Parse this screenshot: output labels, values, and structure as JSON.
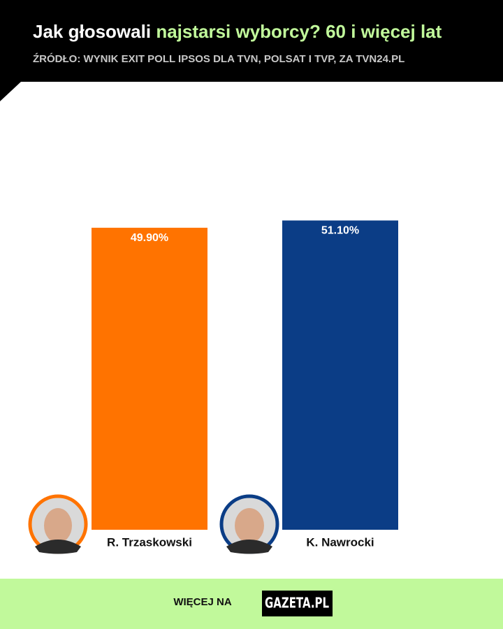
{
  "chart_data": {
    "type": "bar",
    "title": "Jak głosowali",
    "title_highlight": "najstarsi wyborcy? 60 i więcej lat",
    "subtitle": "ŹRÓDŁO: WYNIK EXIT POLL IPSOS DLA TVN, POLSAT I TVP, ZA TVN24.PL",
    "categories": [
      "R. Trzaskowski",
      "K. Nawrocki"
    ],
    "values": [
      49.9,
      51.1
    ],
    "value_labels": [
      "49.90%",
      "51.10%"
    ],
    "colors": [
      "#ff7300",
      "#0b3d86"
    ]
  },
  "footer": {
    "text": "WIĘCEJ NA",
    "logo": "GAZETA.PL"
  }
}
